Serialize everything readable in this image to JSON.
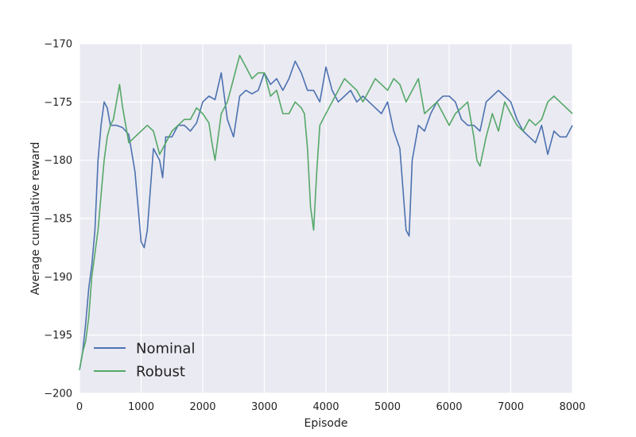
{
  "chart_data": {
    "type": "line",
    "title": "",
    "xlabel": "Episode",
    "ylabel": "Average cumulative reward",
    "xlim": [
      0,
      8000
    ],
    "ylim": [
      -200,
      -170
    ],
    "xticks": [
      0,
      1000,
      2000,
      3000,
      4000,
      5000,
      6000,
      7000,
      8000
    ],
    "xtick_labels": [
      "0",
      "1000",
      "2000",
      "3000",
      "4000",
      "5000",
      "6000",
      "7000",
      "8000"
    ],
    "yticks": [
      -200,
      -195,
      -190,
      -185,
      -180,
      -175,
      -170
    ],
    "ytick_labels": [
      "−200",
      "−195",
      "−190",
      "−185",
      "−180",
      "−175",
      "−170"
    ],
    "grid": true,
    "legend_position": "bottom-left",
    "background_color": "#eaeaf2",
    "grid_color": "#ffffff",
    "series": [
      {
        "name": "Nominal",
        "color": "#4c72b0",
        "x": [
          0,
          50,
          100,
          150,
          200,
          250,
          300,
          350,
          400,
          450,
          500,
          600,
          700,
          800,
          900,
          1000,
          1050,
          1100,
          1200,
          1300,
          1350,
          1400,
          1500,
          1600,
          1700,
          1800,
          1900,
          2000,
          2100,
          2200,
          2300,
          2400,
          2500,
          2600,
          2700,
          2800,
          2900,
          3000,
          3100,
          3200,
          3300,
          3400,
          3500,
          3600,
          3700,
          3800,
          3900,
          4000,
          4100,
          4200,
          4300,
          4400,
          4500,
          4600,
          4700,
          4800,
          4900,
          5000,
          5100,
          5200,
          5300,
          5350,
          5400,
          5500,
          5600,
          5700,
          5800,
          5900,
          6000,
          6100,
          6200,
          6300,
          6400,
          6500,
          6600,
          6700,
          6800,
          6900,
          7000,
          7100,
          7200,
          7300,
          7400,
          7500,
          7600,
          7700,
          7800,
          7900,
          8000
        ],
        "y": [
          -198,
          -196.5,
          -194,
          -191,
          -189,
          -186,
          -180,
          -177,
          -175,
          -175.5,
          -177,
          -177,
          -177.2,
          -177.8,
          -181,
          -187,
          -187.5,
          -186,
          -179,
          -180,
          -181.5,
          -178,
          -178,
          -177,
          -177,
          -177.5,
          -176.8,
          -175,
          -174.5,
          -174.8,
          -172.5,
          -176.5,
          -178,
          -174.5,
          -174,
          -174.3,
          -174,
          -172.5,
          -173.5,
          -173,
          -174,
          -173,
          -171.5,
          -172.5,
          -174,
          -174,
          -175,
          -172,
          -174,
          -175,
          -174.5,
          -174,
          -175,
          -174.5,
          -175,
          -175.5,
          -176,
          -175,
          -177.5,
          -179,
          -186,
          -186.5,
          -180,
          -177,
          -177.5,
          -176,
          -175,
          -174.5,
          -174.5,
          -175,
          -176.5,
          -177,
          -177,
          -177.5,
          -175,
          -174.5,
          -174,
          -174.5,
          -175,
          -176.5,
          -177.5,
          -178,
          -178.5,
          -177,
          -179.5,
          -177.5,
          -178,
          -178,
          -177
        ]
      },
      {
        "name": "Robust",
        "color": "#55a868",
        "x": [
          0,
          50,
          100,
          150,
          200,
          250,
          300,
          350,
          400,
          450,
          500,
          550,
          600,
          650,
          700,
          800,
          900,
          1000,
          1100,
          1200,
          1300,
          1400,
          1500,
          1600,
          1700,
          1800,
          1900,
          2000,
          2100,
          2150,
          2200,
          2300,
          2400,
          2500,
          2550,
          2600,
          2700,
          2800,
          2900,
          3000,
          3100,
          3200,
          3300,
          3400,
          3500,
          3600,
          3650,
          3700,
          3750,
          3800,
          3850,
          3900,
          4000,
          4100,
          4200,
          4300,
          4400,
          4500,
          4600,
          4700,
          4800,
          4900,
          5000,
          5100,
          5200,
          5300,
          5400,
          5500,
          5600,
          5700,
          5800,
          5900,
          6000,
          6100,
          6200,
          6300,
          6400,
          6450,
          6500,
          6600,
          6700,
          6800,
          6900,
          7000,
          7100,
          7200,
          7300,
          7400,
          7500,
          7600,
          7700,
          7800,
          7900,
          8000
        ],
        "y": [
          -198,
          -196.5,
          -195.5,
          -193.5,
          -190,
          -188,
          -186,
          -183,
          -180,
          -178,
          -177,
          -176.5,
          -175,
          -173.5,
          -175.5,
          -178.5,
          -178,
          -177.5,
          -177,
          -177.5,
          -179.5,
          -178.5,
          -177.5,
          -177,
          -176.5,
          -176.5,
          -175.5,
          -176,
          -176.8,
          -178.5,
          -180,
          -176,
          -175,
          -173,
          -172,
          -171,
          -172,
          -173,
          -172.5,
          -172.5,
          -174.5,
          -174,
          -176,
          -176,
          -175,
          -175.5,
          -176,
          -179,
          -184,
          -186,
          -181,
          -177,
          -176,
          -175,
          -174,
          -173,
          -173.5,
          -174,
          -175,
          -174,
          -173,
          -173.5,
          -174,
          -173,
          -173.5,
          -175,
          -174,
          -173,
          -176,
          -175.5,
          -175,
          -176,
          -177,
          -176,
          -175.5,
          -175,
          -178,
          -180,
          -180.5,
          -178,
          -176,
          -177.5,
          -175,
          -176,
          -177,
          -177.5,
          -176.5,
          -177,
          -176.5,
          -175,
          -174.5,
          -175,
          -175.5,
          -176
        ]
      }
    ]
  }
}
